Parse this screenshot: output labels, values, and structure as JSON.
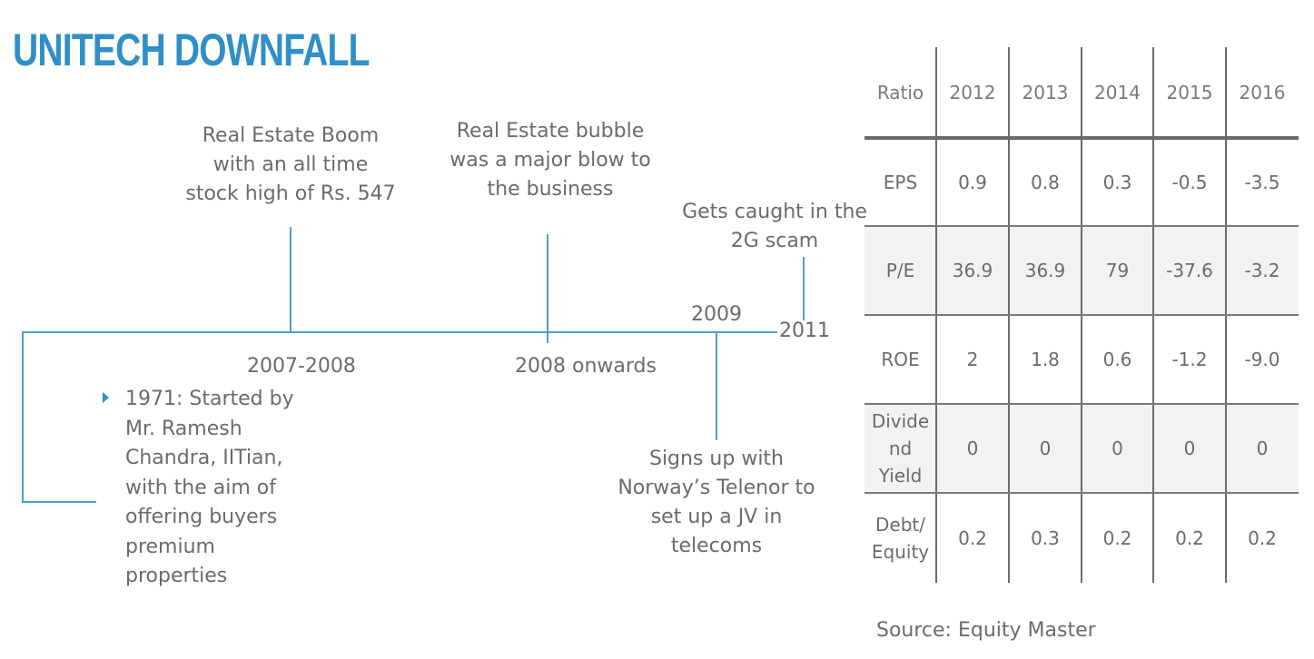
{
  "title": "UNITECH DOWNFALL",
  "accent_color": "#2f8fc7",
  "timeline": {
    "events_above": [
      {
        "lines": [
          "Real Estate Boom",
          "with an all time",
          "stock high of Rs. 547"
        ]
      },
      {
        "lines": [
          "Real Estate bubble",
          "was a major blow to",
          "the business"
        ]
      },
      {
        "lines": [
          "Gets caught in the",
          "2G scam"
        ]
      }
    ],
    "dates": {
      "d2007": "2007-2008",
      "d2008": "2008 onwards",
      "d2009": "2009",
      "d2011": "2011"
    },
    "event_below": {
      "lines": [
        "Signs up with",
        "Norway’s Telenor to",
        "set up a JV in",
        "telecoms"
      ]
    },
    "start_bullet": {
      "lines": [
        "1971: Started by",
        "Mr. Ramesh",
        "Chandra, IITian,",
        "with the aim of",
        "offering buyers",
        "premium",
        "properties"
      ]
    }
  },
  "table": {
    "headers": [
      "Ratio",
      "2012",
      "2013",
      "2014",
      "2015",
      "2016"
    ],
    "rows": [
      {
        "label": [
          "EPS"
        ],
        "values": [
          "0.9",
          "0.8",
          "0.3",
          "-0.5",
          "-3.5"
        ]
      },
      {
        "label": [
          "P/E"
        ],
        "values": [
          "36.9",
          "36.9",
          "79",
          "-37.6",
          "-3.2"
        ]
      },
      {
        "label": [
          "ROE"
        ],
        "values": [
          "2",
          "1.8",
          "0.6",
          "-1.2",
          "-9.0"
        ]
      },
      {
        "label": [
          "Divide",
          "nd",
          "Yield"
        ],
        "values": [
          "0",
          "0",
          "0",
          "0",
          "0"
        ]
      },
      {
        "label": [
          "Debt/",
          "Equity"
        ],
        "values": [
          "0.2",
          "0.3",
          "0.2",
          "0.2",
          "0.2"
        ]
      }
    ]
  },
  "source": "Source: Equity Master"
}
